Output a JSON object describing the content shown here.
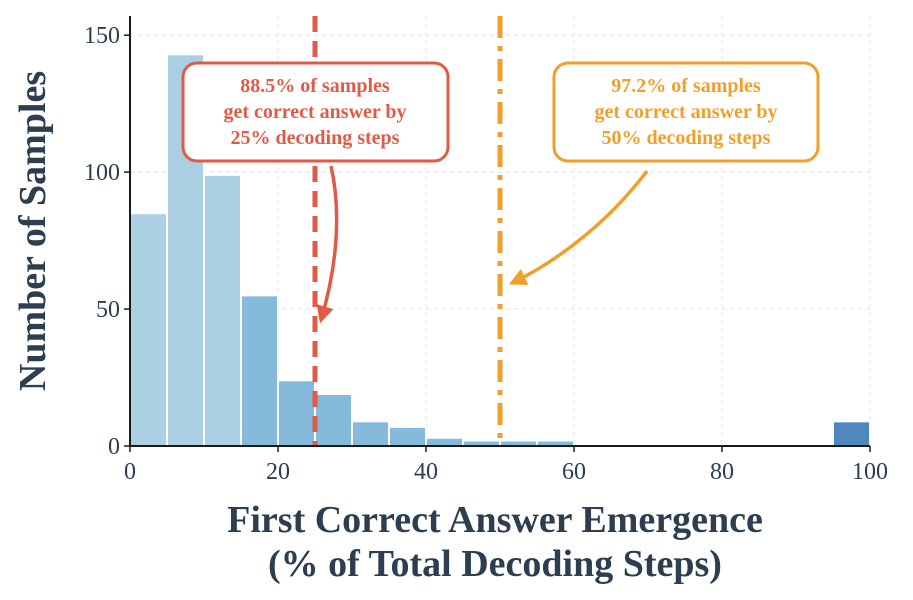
{
  "chart_data": {
    "type": "bar",
    "subtype": "histogram",
    "xlabel_line1": "First Correct Answer Emergence",
    "xlabel_line2": "(% of Total Decoding Steps)",
    "ylabel": "Number of Samples",
    "xlim": [
      0,
      100
    ],
    "ylim": [
      0,
      157
    ],
    "xticks": [
      "0",
      "20",
      "40",
      "60",
      "80",
      "100"
    ],
    "yticks": [
      "0",
      "50",
      "100",
      "150"
    ],
    "xtick_values": [
      0,
      20,
      40,
      60,
      80,
      100
    ],
    "ytick_values": [
      0,
      50,
      100,
      150
    ],
    "grid": true,
    "bins": [
      {
        "x0": 0,
        "x1": 5,
        "value": 85
      },
      {
        "x0": 5,
        "x1": 10,
        "value": 143
      },
      {
        "x0": 10,
        "x1": 15,
        "value": 99
      },
      {
        "x0": 15,
        "x1": 20,
        "value": 55
      },
      {
        "x0": 20,
        "x1": 25,
        "value": 24
      },
      {
        "x0": 25,
        "x1": 30,
        "value": 19
      },
      {
        "x0": 30,
        "x1": 35,
        "value": 9
      },
      {
        "x0": 35,
        "x1": 40,
        "value": 7
      },
      {
        "x0": 40,
        "x1": 45,
        "value": 3
      },
      {
        "x0": 45,
        "x1": 50,
        "value": 2
      },
      {
        "x0": 50,
        "x1": 55,
        "value": 2
      },
      {
        "x0": 55,
        "x1": 60,
        "value": 2
      },
      {
        "x0": 95,
        "x1": 100,
        "value": 9
      }
    ],
    "colors": {
      "bar_light": "#a6cde3",
      "bar_mid": "#7fb6da",
      "bar_dark": "#4682b8",
      "red": "#e05a47",
      "orange": "#f0a02a",
      "text": "#2c3e50"
    },
    "vlines": [
      {
        "x": 25,
        "style": "dashed",
        "color": "#e05a47"
      },
      {
        "x": 50,
        "style": "dashdot",
        "color": "#f0a02a"
      }
    ],
    "annotations": [
      {
        "lines": [
          "88.5% of samples",
          "get correct answer by",
          "25% decoding steps"
        ],
        "color": "#e05a47",
        "arrow_to_x": 25,
        "arrow_to_y": 45
      },
      {
        "lines": [
          "97.2% of samples",
          "get correct answer by",
          "50% decoding steps"
        ],
        "color": "#f0a02a",
        "arrow_to_x": 50,
        "arrow_to_y": 59
      }
    ]
  }
}
